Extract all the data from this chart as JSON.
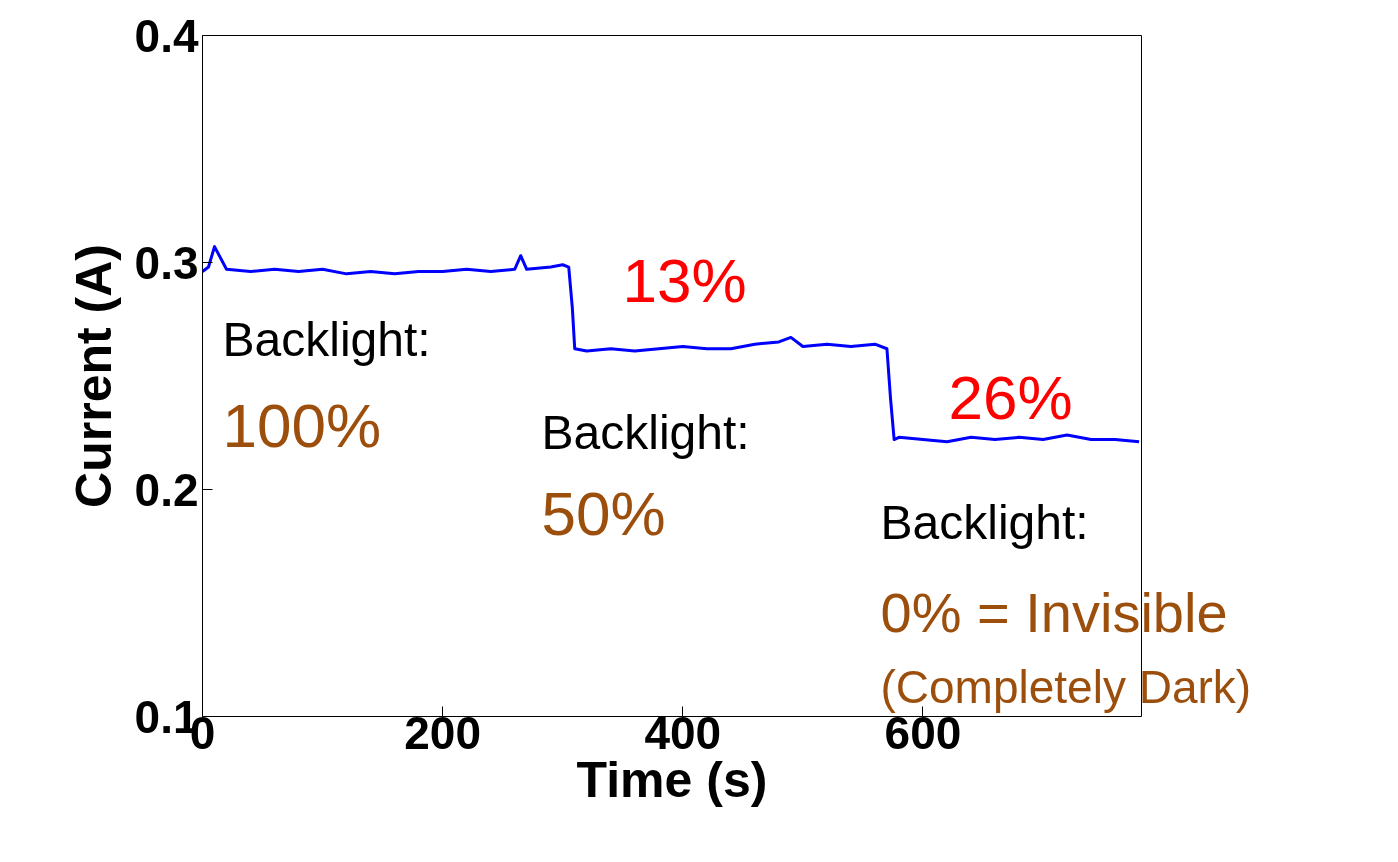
{
  "chart_data": {
    "type": "line",
    "xlabel": "Time (s)",
    "ylabel": "Current (A)",
    "x": [
      0,
      5,
      10,
      20,
      40,
      60,
      80,
      100,
      120,
      140,
      160,
      180,
      200,
      220,
      240,
      260,
      265,
      270,
      290,
      300,
      305,
      308,
      310,
      320,
      340,
      360,
      380,
      400,
      420,
      440,
      460,
      480,
      490,
      500,
      520,
      540,
      560,
      570,
      573,
      576,
      580,
      600,
      620,
      640,
      660,
      680,
      700,
      720,
      740,
      760,
      780
    ],
    "series": [
      {
        "color": "#0000ff",
        "values": [
          0.296,
          0.298,
          0.307,
          0.297,
          0.296,
          0.297,
          0.296,
          0.297,
          0.295,
          0.296,
          0.295,
          0.296,
          0.296,
          0.297,
          0.296,
          0.297,
          0.303,
          0.297,
          0.298,
          0.299,
          0.298,
          0.28,
          0.262,
          0.261,
          0.262,
          0.261,
          0.262,
          0.263,
          0.262,
          0.262,
          0.264,
          0.265,
          0.267,
          0.263,
          0.264,
          0.263,
          0.264,
          0.262,
          0.24,
          0.222,
          0.223,
          0.222,
          0.221,
          0.223,
          0.222,
          0.223,
          0.222,
          0.224,
          0.222,
          0.222,
          0.221
        ]
      }
    ],
    "xlim": [
      0,
      782
    ],
    "ylim": [
      0.1,
      0.4
    ],
    "xticks": [
      0,
      200,
      400,
      600
    ],
    "yticks": [
      0.1,
      0.2,
      0.3,
      0.4
    ],
    "grid": false,
    "legend": false,
    "marker": "none",
    "line_style": "solid",
    "annotations": [
      "Backlight:",
      "100%",
      "13%",
      "Backlight:",
      "50%",
      "26%",
      "Backlight:",
      "0% = Invisible",
      "(Completely Dark)"
    ]
  }
}
